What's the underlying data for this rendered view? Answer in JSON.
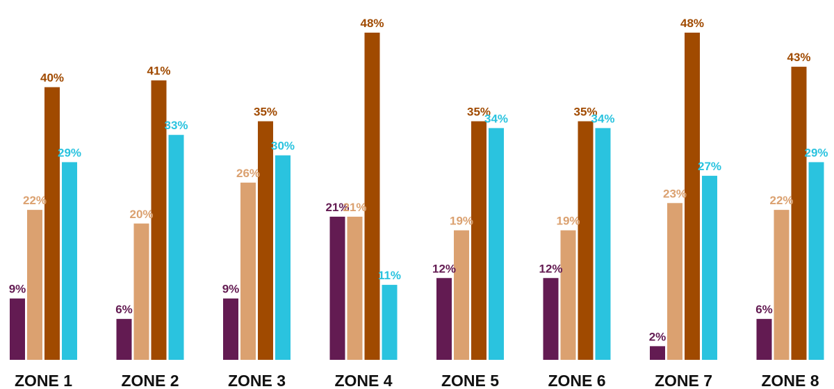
{
  "chart_data": {
    "type": "bar",
    "title": "",
    "xlabel": "",
    "ylabel": "",
    "ylim": [
      0,
      50
    ],
    "grid": false,
    "legend": "none",
    "categories": [
      "ZONE 1",
      "ZONE 2",
      "ZONE 3",
      "ZONE 4",
      "ZONE 5",
      "ZONE 6",
      "ZONE 7",
      "ZONE 8"
    ],
    "series": [
      {
        "color": "#631b52",
        "values": [
          9,
          6,
          9,
          21,
          12,
          12,
          2,
          6
        ],
        "labels": [
          "9%",
          "6%",
          "9%",
          "21%",
          "12%",
          "12%",
          "2%",
          "6%"
        ]
      },
      {
        "color": "#dba170",
        "values": [
          22,
          20,
          26,
          21,
          19,
          19,
          23,
          22
        ],
        "labels": [
          "22%",
          "20%",
          "26%",
          "21%",
          "19%",
          "19%",
          "23%",
          "22%"
        ]
      },
      {
        "color": "#a04a00",
        "values": [
          40,
          41,
          35,
          48,
          35,
          35,
          48,
          43
        ],
        "labels": [
          "40%",
          "41%",
          "35%",
          "48%",
          "35%",
          "35%",
          "48%",
          "43%"
        ]
      },
      {
        "color": "#2ac3df",
        "values": [
          29,
          33,
          30,
          11,
          34,
          34,
          27,
          29
        ],
        "labels": [
          "29%",
          "33%",
          "30%",
          "11%",
          "34%",
          "34%",
          "27%",
          "29%"
        ]
      }
    ]
  }
}
